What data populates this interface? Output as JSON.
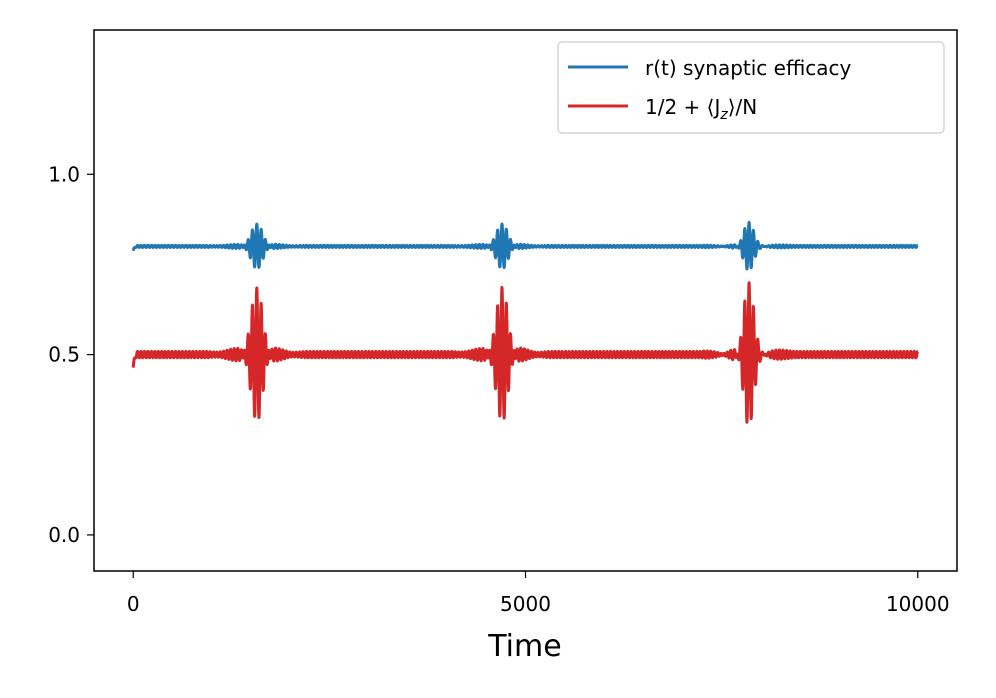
{
  "chart_data": {
    "type": "line",
    "title": "",
    "xlabel": "Time",
    "ylabel": "",
    "xlim": [
      -500,
      10500
    ],
    "ylim": [
      -0.1,
      1.4
    ],
    "xticks": [
      0,
      5000,
      10000
    ],
    "xtick_labels": [
      "0",
      "5000",
      "10000"
    ],
    "yticks": [
      0.0,
      0.5,
      1.0
    ],
    "ytick_labels": [
      "0.0",
      "0.5",
      "1.0"
    ],
    "grid": false,
    "legend_position": "top-right",
    "series": [
      {
        "name": "r(t) synaptic efficacy",
        "color": "#1f77b4",
        "baseline": 0.8,
        "burst_centers": [
          1575,
          4700,
          7850
        ],
        "burst_peak_amplitude": 0.06,
        "x_range": [
          0,
          10000
        ]
      },
      {
        "name": "1/2 + ⟨J_z⟩/N",
        "legend_parts": {
          "pre": "1/2 + ⟨J",
          "sub": "z",
          "post": "⟩/N"
        },
        "color": "#d62728",
        "baseline": 0.5,
        "burst_centers": [
          1575,
          4700,
          7850
        ],
        "burst_peak_amplitude": 0.18,
        "x_range": [
          0,
          10000
        ]
      }
    ]
  }
}
